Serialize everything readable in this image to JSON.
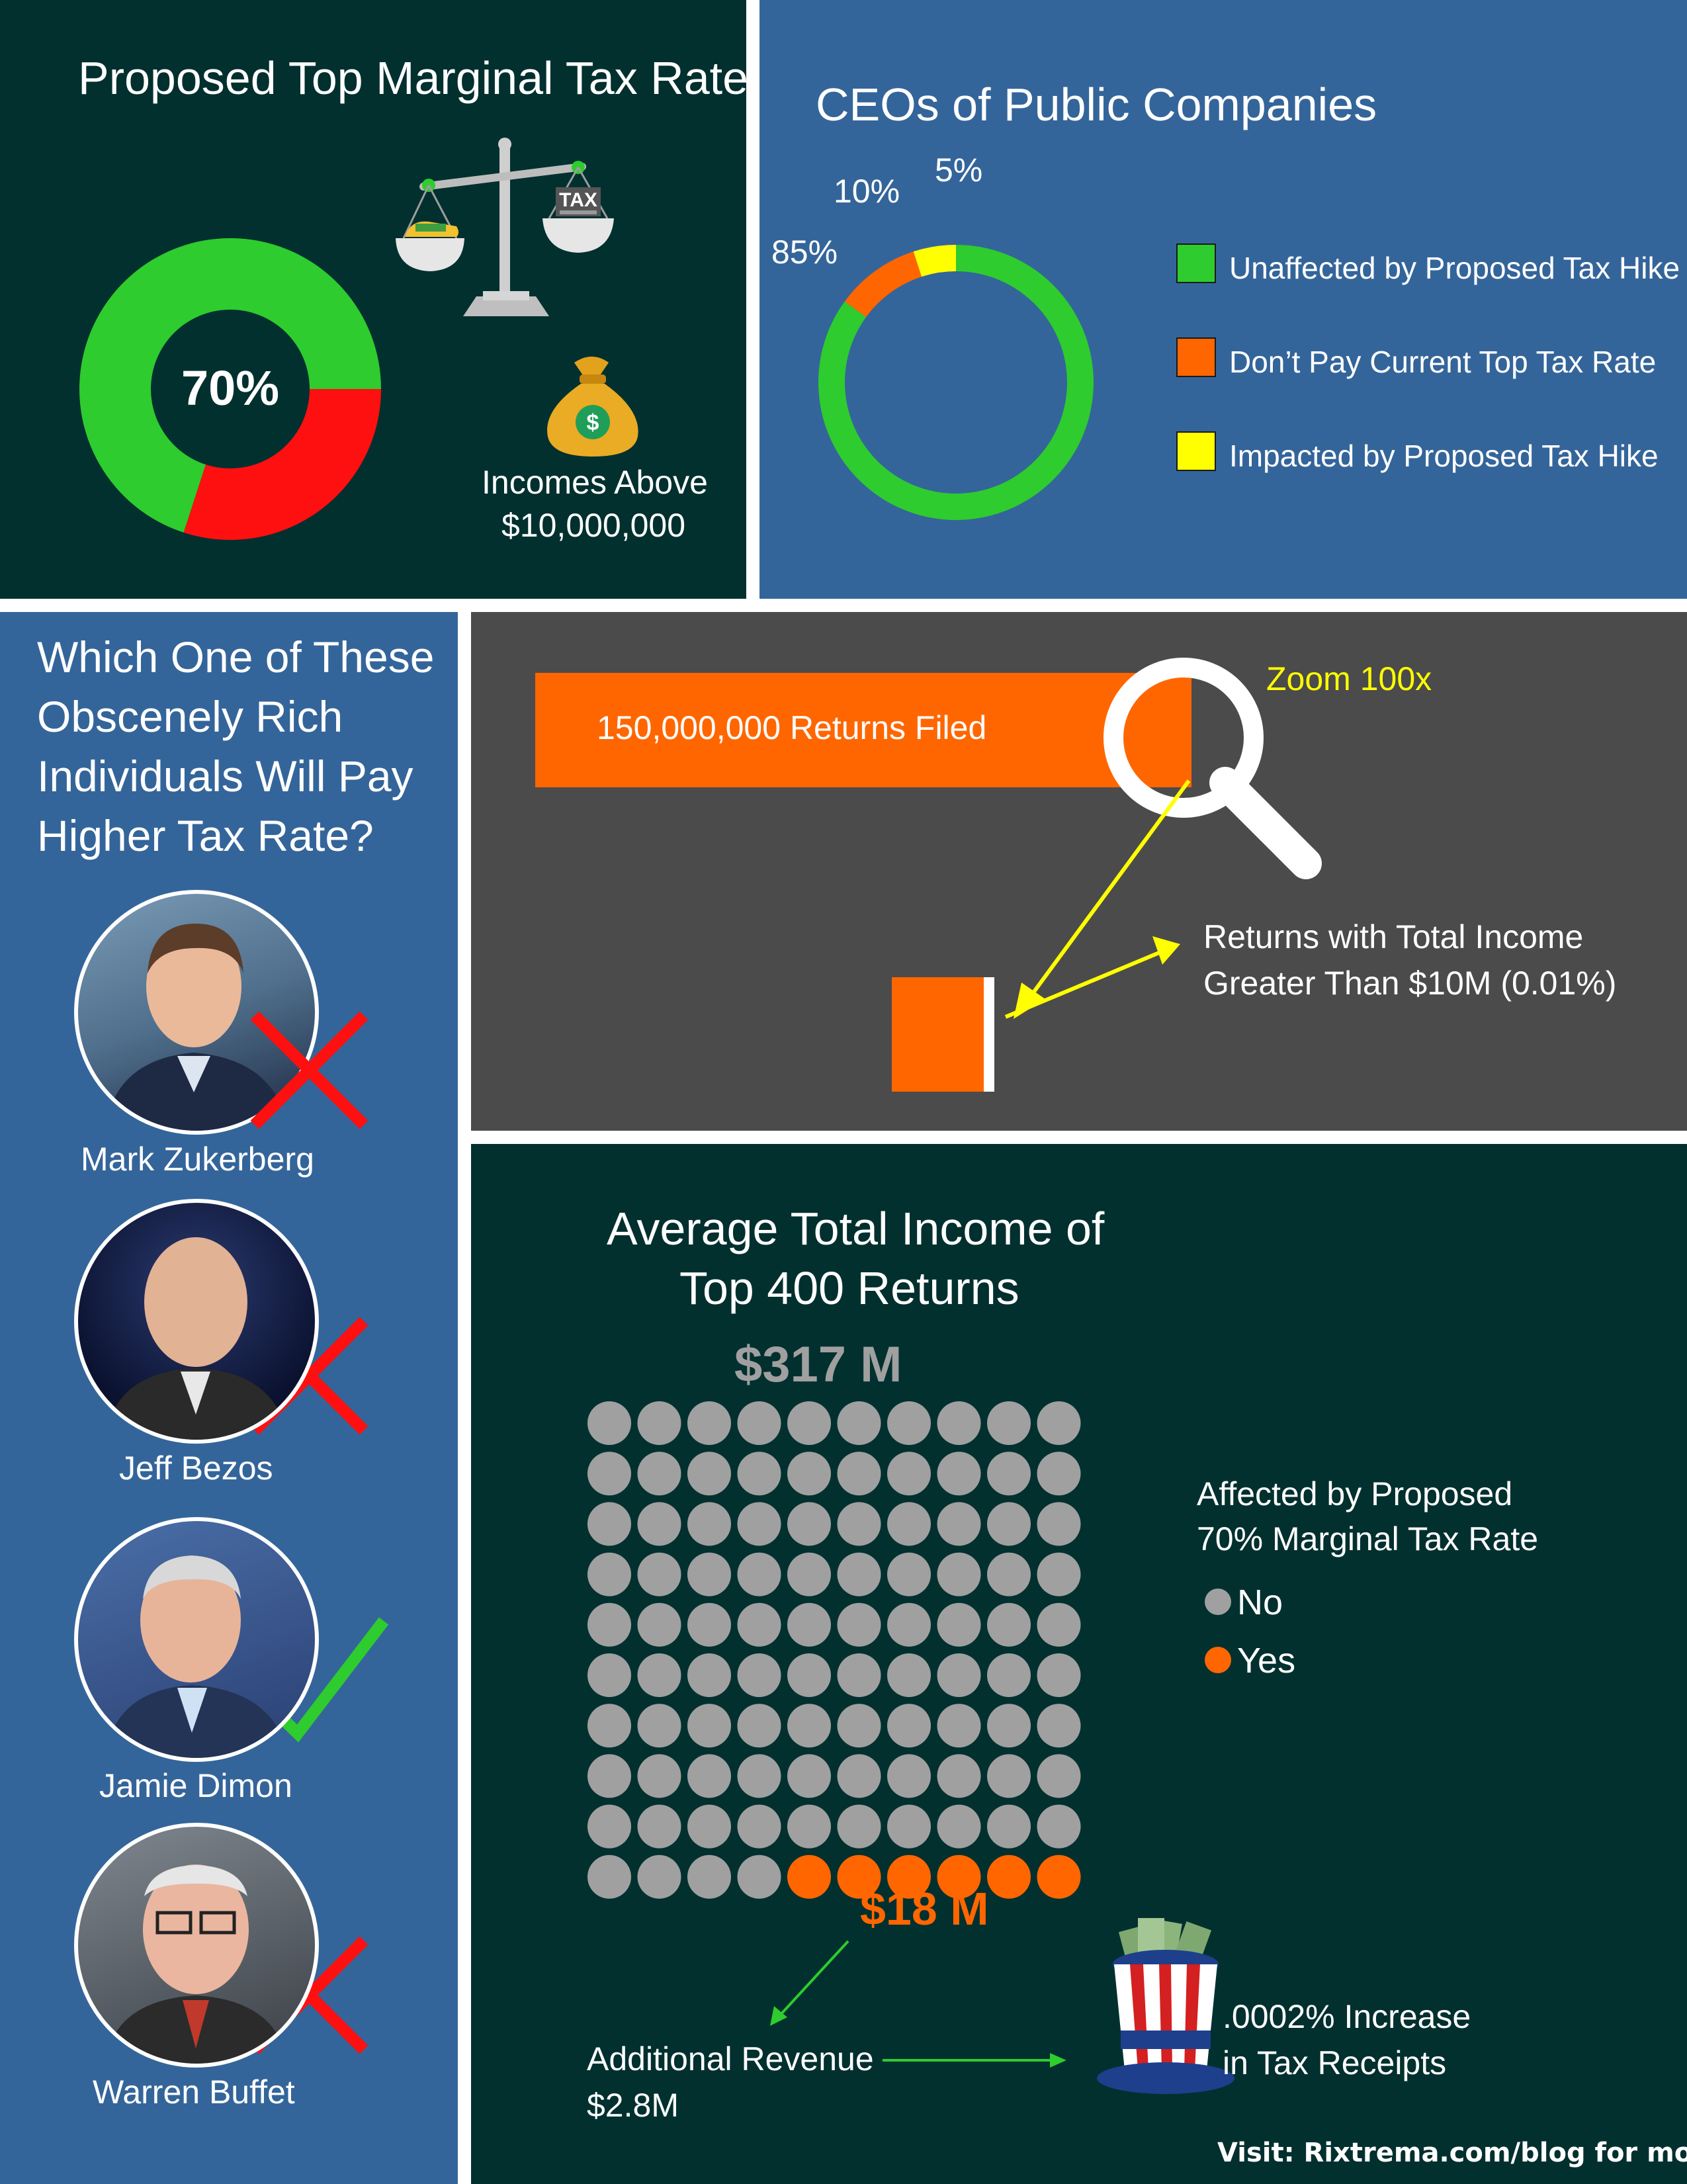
{
  "tax_panel": {
    "title": "Proposed Top Marginal Tax Rate",
    "center_label": "70%",
    "tax_sign": "TAX",
    "income_line1": "Incomes Above",
    "income_line2": "$10,000,000"
  },
  "ceo_panel": {
    "title": "CEOs of Public Companies",
    "legend": [
      "Unaffected by Proposed Tax Hike",
      "Don’t Pay Current Top Tax Rate",
      "Impacted by Proposed Tax Hike"
    ],
    "slice_labels": [
      "85%",
      "10%",
      "5%"
    ]
  },
  "rich_panel": {
    "title_lines": [
      "Which One of These",
      "Obscenely Rich",
      "Individuals Will Pay",
      "Higher Tax Rate?"
    ],
    "people": [
      {
        "name": "Mark Zukerberg",
        "mark": "cross-icon"
      },
      {
        "name": "Jeff Bezos",
        "mark": "cross-icon"
      },
      {
        "name": "Jamie Dimon",
        "mark": "check-icon"
      },
      {
        "name": "Warren Buffet",
        "mark": "cross-icon"
      }
    ]
  },
  "returns_panel": {
    "bar_label": "150,000,000 Returns Filed",
    "zoom_label": "Zoom 100x",
    "small_label_line1": "Returns with Total Income",
    "small_label_line2": "Greater Than $10M (0.01%)"
  },
  "top400_panel": {
    "title_line1": "Average Total Income of",
    "title_line2": "Top 400 Returns",
    "top_value": "$317 M",
    "bottom_value": "$18 M",
    "legend_title_line1": "Affected by Proposed",
    "legend_title_line2": "70% Marginal Tax Rate",
    "legend_no": "No",
    "legend_yes": "Yes",
    "revenue_line1": "Additional Revenue",
    "revenue_line2": "$2.8M",
    "increase_line1": ".0002% Increase",
    "increase_line2": "in Tax Receipts",
    "footer": "Visit: Rixtrema.com/blog for more"
  },
  "colors": {
    "green": "#2ECC2E",
    "red": "#FF1010",
    "orange": "#FF6600",
    "yellow": "#FFFF00",
    "gray": "#A0A0A0",
    "dark_teal": "#02302F",
    "blue": "#34659A",
    "charcoal": "#4B4B4B"
  },
  "chart_data": [
    {
      "type": "pie",
      "categories": [
        "Red share",
        "Green share"
      ],
      "values": [
        30,
        70
      ],
      "colors": [
        "#FF1010",
        "#2ECC2E"
      ],
      "title": "Proposed Top Marginal Tax Rate",
      "center_label": "70%"
    },
    {
      "type": "pie",
      "categories": [
        "Unaffected by Proposed Tax Hike",
        "Don’t Pay Current Top Tax Rate",
        "Impacted by Proposed Tax Hike"
      ],
      "values": [
        85,
        10,
        5
      ],
      "colors": [
        "#2ECC2E",
        "#FF6600",
        "#FFFF00"
      ],
      "title": "CEOs of Public Companies",
      "legend_position": "right"
    },
    {
      "type": "scatter",
      "title": "Average Total Income of Top 400 Returns",
      "grid_rows": 10,
      "grid_cols": 10,
      "categories": [
        "No",
        "Yes"
      ],
      "values": [
        94,
        6
      ],
      "colors": [
        "#A0A0A0",
        "#FF6600"
      ]
    }
  ]
}
